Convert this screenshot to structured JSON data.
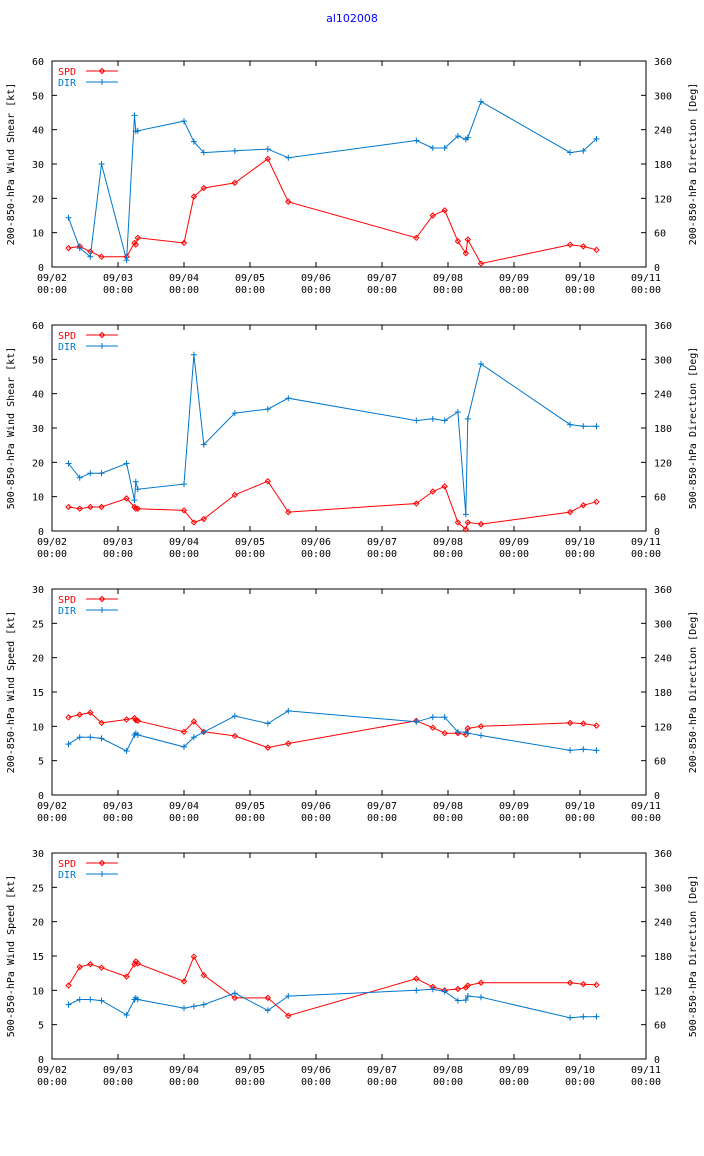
{
  "figure_title": "al102008",
  "chart_data": [
    {
      "type": "line",
      "ylabel_left": "200-850-hPa Wind Shear [kt]",
      "ylabel_right": "200-850-hPa Direction [Deg]",
      "ylim_left": [
        0,
        60
      ],
      "ylim_right": [
        0,
        360
      ],
      "yticks_left": [
        "0",
        "10",
        "20",
        "30",
        "40",
        "50",
        "60"
      ],
      "yticks_right": [
        "0",
        "60",
        "120",
        "180",
        "240",
        "300",
        "360"
      ],
      "xlim": [
        0,
        9
      ],
      "xticks": [
        {
          "date": "09/02",
          "time": "00:00"
        },
        {
          "date": "09/03",
          "time": "00:00"
        },
        {
          "date": "09/04",
          "time": "00:00"
        },
        {
          "date": "09/05",
          "time": "00:00"
        },
        {
          "date": "09/06",
          "time": "00:00"
        },
        {
          "date": "09/07",
          "time": "00:00"
        },
        {
          "date": "09/08",
          "time": "00:00"
        },
        {
          "date": "09/09",
          "time": "00:00"
        },
        {
          "date": "09/10",
          "time": "00:00"
        },
        {
          "date": "09/11",
          "time": "00:00"
        }
      ],
      "series": [
        {
          "name": "SPD",
          "color": "#ff0000",
          "axis": "left",
          "marker": "diamond",
          "x": [
            0.25,
            0.42,
            0.58,
            0.75,
            1.13,
            1.25,
            1.27,
            1.3,
            2.0,
            2.15,
            2.3,
            2.77,
            3.27,
            3.58,
            5.52,
            5.77,
            5.95,
            6.15,
            6.27,
            6.3,
            6.5,
            7.85,
            8.05,
            8.25
          ],
          "y": [
            5.5,
            6,
            4.5,
            3,
            3,
            7,
            6.5,
            8.5,
            7,
            20.5,
            23,
            24.5,
            31.5,
            19,
            8.5,
            15,
            16.5,
            7.5,
            4,
            8,
            1,
            6.5,
            6,
            5
          ]
        },
        {
          "name": "DIR",
          "color": "#0077cc",
          "axis": "right",
          "marker": "plus",
          "x": [
            0.25,
            0.42,
            0.58,
            0.75,
            1.13,
            1.25,
            1.27,
            1.3,
            2.0,
            2.15,
            2.3,
            2.77,
            3.27,
            3.58,
            5.52,
            5.77,
            5.95,
            6.15,
            6.27,
            6.3,
            6.5,
            7.85,
            8.05,
            8.25
          ],
          "y": [
            86,
            33,
            18,
            180,
            12,
            265,
            237,
            238,
            255,
            219,
            200,
            203,
            206,
            191,
            221,
            208,
            208,
            229,
            223,
            226,
            289,
            200,
            203,
            224
          ]
        }
      ]
    },
    {
      "type": "line",
      "ylabel_left": "500-850-hPa Wind Shear [kt]",
      "ylabel_right": "500-850-hPa Direction [Deg]",
      "ylim_left": [
        0,
        60
      ],
      "ylim_right": [
        0,
        360
      ],
      "yticks_left": [
        "0",
        "10",
        "20",
        "30",
        "40",
        "50",
        "60"
      ],
      "yticks_right": [
        "0",
        "60",
        "120",
        "180",
        "240",
        "300",
        "360"
      ],
      "xlim": [
        0,
        9
      ],
      "xticks": [
        {
          "date": "09/02",
          "time": "00:00"
        },
        {
          "date": "09/03",
          "time": "00:00"
        },
        {
          "date": "09/04",
          "time": "00:00"
        },
        {
          "date": "09/05",
          "time": "00:00"
        },
        {
          "date": "09/06",
          "time": "00:00"
        },
        {
          "date": "09/07",
          "time": "00:00"
        },
        {
          "date": "09/08",
          "time": "00:00"
        },
        {
          "date": "09/09",
          "time": "00:00"
        },
        {
          "date": "09/10",
          "time": "00:00"
        },
        {
          "date": "09/11",
          "time": "00:00"
        }
      ],
      "series": [
        {
          "name": "SPD",
          "color": "#ff0000",
          "axis": "left",
          "marker": "diamond",
          "x": [
            0.25,
            0.42,
            0.58,
            0.75,
            1.13,
            1.25,
            1.27,
            1.3,
            2.0,
            2.15,
            2.3,
            2.77,
            3.27,
            3.58,
            5.52,
            5.77,
            5.95,
            6.15,
            6.27,
            6.3,
            6.5,
            7.85,
            8.05,
            8.25
          ],
          "y": [
            7,
            6.5,
            7,
            7,
            9.5,
            7,
            6.5,
            6.5,
            6,
            2.5,
            3.5,
            10.5,
            14.5,
            5.5,
            8,
            11.5,
            13,
            2.5,
            0.5,
            2.5,
            2,
            5.5,
            7.5,
            8.5
          ]
        },
        {
          "name": "DIR",
          "color": "#0077cc",
          "axis": "right",
          "marker": "plus",
          "x": [
            0.25,
            0.42,
            0.58,
            0.75,
            1.13,
            1.25,
            1.27,
            1.3,
            2.0,
            2.15,
            2.3,
            2.77,
            3.27,
            3.58,
            5.52,
            5.77,
            5.95,
            6.15,
            6.27,
            6.3,
            6.5,
            7.85,
            8.05,
            8.25
          ],
          "y": [
            118,
            93,
            101,
            101,
            118,
            54,
            86,
            73,
            82,
            308,
            151,
            206,
            213,
            232,
            193,
            196,
            193,
            208,
            29,
            196,
            292,
            186,
            183,
            183
          ]
        }
      ]
    },
    {
      "type": "line",
      "ylabel_left": "200-850-hPa Wind Speed [kt]",
      "ylabel_right": "200-850-hPa Direction [Deg]",
      "ylim_left": [
        0,
        30
      ],
      "ylim_right": [
        0,
        360
      ],
      "yticks_left": [
        "0",
        "5",
        "10",
        "15",
        "20",
        "25",
        "30"
      ],
      "yticks_right": [
        "0",
        "60",
        "120",
        "180",
        "240",
        "300",
        "360"
      ],
      "xlim": [
        0,
        9
      ],
      "xticks": [
        {
          "date": "09/02",
          "time": "00:00"
        },
        {
          "date": "09/03",
          "time": "00:00"
        },
        {
          "date": "09/04",
          "time": "00:00"
        },
        {
          "date": "09/05",
          "time": "00:00"
        },
        {
          "date": "09/06",
          "time": "00:00"
        },
        {
          "date": "09/07",
          "time": "00:00"
        },
        {
          "date": "09/08",
          "time": "00:00"
        },
        {
          "date": "09/09",
          "time": "00:00"
        },
        {
          "date": "09/10",
          "time": "00:00"
        },
        {
          "date": "09/11",
          "time": "00:00"
        }
      ],
      "series": [
        {
          "name": "SPD",
          "color": "#ff0000",
          "axis": "left",
          "marker": "diamond",
          "x": [
            0.25,
            0.42,
            0.58,
            0.75,
            1.13,
            1.25,
            1.27,
            1.3,
            2.0,
            2.15,
            2.3,
            2.77,
            3.27,
            3.58,
            5.52,
            5.77,
            5.95,
            6.15,
            6.27,
            6.3,
            6.5,
            7.85,
            8.05,
            8.25
          ],
          "y": [
            11.3,
            11.7,
            12,
            10.5,
            11,
            11.2,
            10.9,
            10.8,
            9.2,
            10.7,
            9.2,
            8.6,
            6.9,
            7.5,
            10.8,
            9.8,
            9,
            9,
            8.8,
            9.7,
            10,
            10.5,
            10.4,
            10.1
          ]
        },
        {
          "name": "DIR",
          "color": "#0077cc",
          "axis": "right",
          "marker": "plus",
          "x": [
            0.25,
            0.42,
            0.58,
            0.75,
            1.13,
            1.25,
            1.27,
            1.3,
            2.0,
            2.15,
            2.3,
            2.77,
            3.27,
            3.58,
            5.52,
            5.77,
            5.95,
            6.15,
            6.27,
            6.3,
            6.5,
            7.85,
            8.05,
            8.25
          ],
          "y": [
            89,
            101,
            101,
            99,
            77,
            105,
            108,
            105,
            84,
            101,
            110,
            138,
            125,
            147,
            128,
            136,
            136,
            110,
            110,
            108,
            104,
            78,
            80,
            78
          ]
        }
      ]
    },
    {
      "type": "line",
      "ylabel_left": "500-850-hPa Wind Speed [kt]",
      "ylabel_right": "500-850-hPa Direction [Deg]",
      "ylim_left": [
        0,
        30
      ],
      "ylim_right": [
        0,
        360
      ],
      "yticks_left": [
        "0",
        "5",
        "10",
        "15",
        "20",
        "25",
        "30"
      ],
      "yticks_right": [
        "0",
        "60",
        "120",
        "180",
        "240",
        "300",
        "360"
      ],
      "xlim": [
        0,
        9
      ],
      "xticks": [
        {
          "date": "09/02",
          "time": "00:00"
        },
        {
          "date": "09/03",
          "time": "00:00"
        },
        {
          "date": "09/04",
          "time": "00:00"
        },
        {
          "date": "09/05",
          "time": "00:00"
        },
        {
          "date": "09/06",
          "time": "00:00"
        },
        {
          "date": "09/07",
          "time": "00:00"
        },
        {
          "date": "09/08",
          "time": "00:00"
        },
        {
          "date": "09/09",
          "time": "00:00"
        },
        {
          "date": "09/10",
          "time": "00:00"
        },
        {
          "date": "09/11",
          "time": "00:00"
        }
      ],
      "series": [
        {
          "name": "SPD",
          "color": "#ff0000",
          "axis": "left",
          "marker": "diamond",
          "x": [
            0.25,
            0.42,
            0.58,
            0.75,
            1.13,
            1.25,
            1.27,
            1.3,
            2.0,
            2.15,
            2.3,
            2.77,
            3.27,
            3.58,
            5.52,
            5.77,
            5.95,
            6.15,
            6.27,
            6.3,
            6.5,
            7.85,
            8.05,
            8.25
          ],
          "y": [
            10.7,
            13.4,
            13.8,
            13.3,
            12,
            13.8,
            14.2,
            13.9,
            11.3,
            14.9,
            12.2,
            8.9,
            8.9,
            6.3,
            11.7,
            10.5,
            10,
            10.2,
            10.4,
            10.7,
            11.1,
            11.1,
            10.9,
            10.8
          ]
        },
        {
          "name": "DIR",
          "color": "#0077cc",
          "axis": "right",
          "marker": "plus",
          "x": [
            0.25,
            0.42,
            0.58,
            0.75,
            1.13,
            1.25,
            1.27,
            1.3,
            2.0,
            2.15,
            2.3,
            2.77,
            3.27,
            3.58,
            5.52,
            5.77,
            5.95,
            6.15,
            6.27,
            6.3,
            6.5,
            7.85,
            8.05,
            8.25
          ],
          "y": [
            95,
            104,
            104,
            102,
            77,
            104,
            107,
            104,
            89,
            92,
            95,
            115,
            85,
            110,
            120,
            122,
            118,
            102,
            103,
            110,
            108,
            72,
            74,
            74
          ]
        }
      ]
    }
  ]
}
